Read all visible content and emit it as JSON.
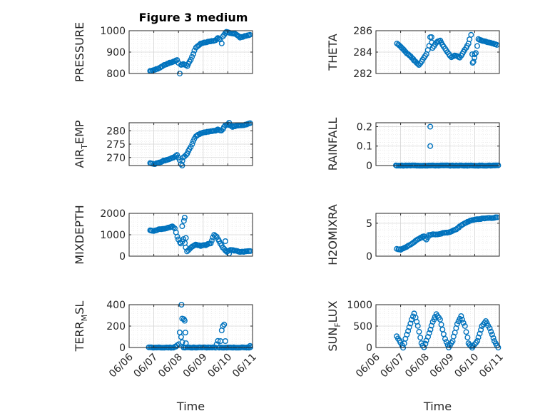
{
  "colors": {
    "marker": "#0072bd",
    "axis": "#262626"
  },
  "chart_data": [
    {
      "type": "scatter",
      "id": "pressure",
      "title": "Figure 3 medium",
      "ylabel": "PRESSURE",
      "xlim": [
        6,
        11
      ],
      "ylim": [
        800,
        1000
      ],
      "yticks": [
        800,
        900,
        1000
      ],
      "yticklabels": [
        "800",
        "900",
        "1000"
      ],
      "grid": true,
      "keys": [
        [
          6.85,
          812
        ],
        [
          7.0,
          815
        ],
        [
          7.2,
          825
        ],
        [
          7.4,
          838
        ],
        [
          7.6,
          848
        ],
        [
          7.8,
          855
        ],
        [
          7.95,
          862
        ],
        [
          8.0,
          850
        ],
        [
          8.05,
          800
        ],
        [
          8.1,
          840
        ],
        [
          8.2,
          845
        ],
        [
          8.35,
          835
        ],
        [
          8.5,
          865
        ],
        [
          8.7,
          920
        ],
        [
          8.9,
          940
        ],
        [
          9.1,
          945
        ],
        [
          9.3,
          950
        ],
        [
          9.5,
          955
        ],
        [
          9.6,
          965
        ],
        [
          9.7,
          960
        ],
        [
          9.75,
          940
        ],
        [
          9.8,
          975
        ],
        [
          9.95,
          995
        ],
        [
          10.1,
          990
        ],
        [
          10.3,
          985
        ],
        [
          10.5,
          968
        ],
        [
          10.7,
          975
        ],
        [
          10.9,
          980
        ]
      ]
    },
    {
      "type": "scatter",
      "id": "theta",
      "ylabel": "THETA",
      "xlim": [
        6,
        11
      ],
      "ylim": [
        282,
        286
      ],
      "yticks": [
        282,
        284,
        286
      ],
      "yticklabels": [
        "282",
        "284",
        "286"
      ],
      "grid": true,
      "keys": [
        [
          6.85,
          284.8
        ],
        [
          7.0,
          284.5
        ],
        [
          7.2,
          284.0
        ],
        [
          7.4,
          283.6
        ],
        [
          7.6,
          283.1
        ],
        [
          7.75,
          282.8
        ],
        [
          7.9,
          283.3
        ],
        [
          8.05,
          283.8
        ],
        [
          8.15,
          284.6
        ],
        [
          8.2,
          285.4
        ],
        [
          8.3,
          284.4
        ],
        [
          8.45,
          284.9
        ],
        [
          8.6,
          285.1
        ],
        [
          8.75,
          284.5
        ],
        [
          8.9,
          284.0
        ],
        [
          9.05,
          283.5
        ],
        [
          9.2,
          283.7
        ],
        [
          9.4,
          283.5
        ],
        [
          9.6,
          284.2
        ],
        [
          9.75,
          284.8
        ],
        [
          9.85,
          285.6
        ],
        [
          9.9,
          283.8
        ],
        [
          9.95,
          283.1
        ],
        [
          10.05,
          283.9
        ],
        [
          10.15,
          285.2
        ],
        [
          10.4,
          285.0
        ],
        [
          10.6,
          284.9
        ],
        [
          10.9,
          284.7
        ]
      ],
      "extra": [
        [
          8.25,
          285.4
        ],
        [
          9.92,
          283.0
        ],
        [
          10.0,
          283.8
        ]
      ]
    },
    {
      "type": "scatter",
      "id": "airtemp",
      "ylabel": "AIR",
      "ylabel_sub": "T",
      "ylabel_tail": "EMP",
      "xlim": [
        6,
        11
      ],
      "ylim": [
        267,
        283
      ],
      "yticks": [
        270,
        275,
        280
      ],
      "yticklabels": [
        "270",
        "275",
        "280"
      ],
      "grid": true,
      "keys": [
        [
          6.85,
          268
        ],
        [
          7.0,
          267.5
        ],
        [
          7.2,
          268
        ],
        [
          7.4,
          268.8
        ],
        [
          7.6,
          269.3
        ],
        [
          7.8,
          270
        ],
        [
          7.95,
          271
        ],
        [
          8.05,
          269
        ],
        [
          8.1,
          267.5
        ],
        [
          8.2,
          270
        ],
        [
          8.35,
          271.5
        ],
        [
          8.5,
          274
        ],
        [
          8.7,
          278
        ],
        [
          8.9,
          279
        ],
        [
          9.1,
          279.5
        ],
        [
          9.3,
          279.8
        ],
        [
          9.5,
          280
        ],
        [
          9.6,
          280.5
        ],
        [
          9.75,
          280
        ],
        [
          9.9,
          282
        ],
        [
          10.0,
          282.5
        ],
        [
          10.2,
          281.5
        ],
        [
          10.4,
          282
        ],
        [
          10.6,
          282
        ],
        [
          10.9,
          282.8
        ]
      ],
      "extra": [
        [
          8.15,
          267
        ],
        [
          10.05,
          283
        ]
      ]
    },
    {
      "type": "scatter",
      "id": "rainfall",
      "ylabel": "RAINFALL",
      "xlim": [
        6,
        11
      ],
      "ylim": [
        0,
        0.22
      ],
      "yticks": [
        0,
        0.1,
        0.2
      ],
      "yticklabels": [
        "0",
        "0.1",
        "0.2"
      ],
      "grid": true,
      "keys": [
        [
          6.8,
          0
        ],
        [
          10.95,
          0
        ]
      ],
      "extra": [
        [
          8.2,
          0.2
        ],
        [
          8.2,
          0.1
        ]
      ]
    },
    {
      "type": "scatter",
      "id": "mixdepth",
      "ylabel": "MIXDEPTH",
      "xlim": [
        6,
        11
      ],
      "ylim": [
        0,
        2000
      ],
      "yticks": [
        0,
        1000,
        2000
      ],
      "yticklabels": [
        "0",
        "1000",
        "2000"
      ],
      "grid": true,
      "keys": [
        [
          6.85,
          1200
        ],
        [
          7.0,
          1180
        ],
        [
          7.2,
          1250
        ],
        [
          7.4,
          1280
        ],
        [
          7.6,
          1330
        ],
        [
          7.75,
          1400
        ],
        [
          7.85,
          1300
        ],
        [
          7.95,
          900
        ],
        [
          8.05,
          650
        ],
        [
          8.1,
          600
        ],
        [
          8.2,
          800
        ],
        [
          8.35,
          220
        ],
        [
          8.5,
          400
        ],
        [
          8.7,
          550
        ],
        [
          8.9,
          480
        ],
        [
          9.1,
          520
        ],
        [
          9.3,
          600
        ],
        [
          9.45,
          1000
        ],
        [
          9.55,
          900
        ],
        [
          9.7,
          600
        ],
        [
          9.8,
          400
        ],
        [
          9.95,
          200
        ],
        [
          10.1,
          300
        ],
        [
          10.3,
          250
        ],
        [
          10.5,
          200
        ],
        [
          10.9,
          230
        ]
      ],
      "extra": [
        [
          8.25,
          1800
        ],
        [
          8.22,
          1650
        ],
        [
          8.15,
          1400
        ],
        [
          8.3,
          850
        ],
        [
          9.9,
          700
        ],
        [
          10.05,
          120
        ]
      ]
    },
    {
      "type": "scatter",
      "id": "h2omixra",
      "ylabel": "H2OMIXRA",
      "xlim": [
        6,
        11
      ],
      "ylim": [
        0,
        6.5
      ],
      "yticks": [
        0,
        5
      ],
      "yticklabels": [
        "0",
        "5"
      ],
      "grid": true,
      "keys": [
        [
          6.85,
          1.1
        ],
        [
          7.0,
          1.0
        ],
        [
          7.2,
          1.3
        ],
        [
          7.4,
          1.8
        ],
        [
          7.6,
          2.3
        ],
        [
          7.8,
          2.8
        ],
        [
          7.95,
          3.0
        ],
        [
          8.05,
          2.5
        ],
        [
          8.15,
          3.2
        ],
        [
          8.3,
          3.3
        ],
        [
          8.5,
          3.3
        ],
        [
          8.7,
          3.5
        ],
        [
          8.9,
          3.6
        ],
        [
          9.1,
          3.8
        ],
        [
          9.3,
          4.2
        ],
        [
          9.5,
          4.8
        ],
        [
          9.7,
          5.2
        ],
        [
          9.9,
          5.5
        ],
        [
          10.1,
          5.6
        ],
        [
          10.3,
          5.7
        ],
        [
          10.5,
          5.8
        ],
        [
          10.7,
          5.8
        ],
        [
          10.9,
          5.9
        ]
      ]
    },
    {
      "type": "scatter",
      "id": "terrmsl",
      "ylabel": "TERR",
      "ylabel_sub": "M",
      "ylabel_tail": "SL",
      "xlim": [
        6,
        11
      ],
      "ylim": [
        0,
        400
      ],
      "yticks": [
        0,
        200,
        400
      ],
      "yticklabels": [
        "0",
        "200",
        "400"
      ],
      "grid": true,
      "xticks": [
        6,
        7,
        8,
        9,
        10,
        11
      ],
      "xticklabels": [
        "06/06",
        "06/07",
        "06/08",
        "06/09",
        "06/10",
        "06/11"
      ],
      "xlabel": "Time",
      "keys": [
        [
          6.8,
          0
        ],
        [
          7.8,
          0
        ],
        [
          7.9,
          10
        ],
        [
          8.0,
          30
        ],
        [
          8.05,
          140
        ],
        [
          8.1,
          100
        ],
        [
          8.2,
          0
        ],
        [
          9.5,
          0
        ],
        [
          9.6,
          60
        ],
        [
          9.65,
          0
        ],
        [
          10.9,
          0
        ]
      ],
      "extra": [
        [
          8.12,
          400
        ],
        [
          8.15,
          270
        ],
        [
          8.22,
          265
        ],
        [
          8.25,
          250
        ],
        [
          8.28,
          140
        ],
        [
          8.3,
          40
        ],
        [
          9.75,
          160
        ],
        [
          9.8,
          200
        ],
        [
          9.85,
          215
        ],
        [
          9.7,
          60
        ],
        [
          9.9,
          60
        ],
        [
          10.9,
          15
        ]
      ]
    },
    {
      "type": "scatter",
      "id": "sunflux",
      "ylabel": "SUN",
      "ylabel_sub": "F",
      "ylabel_tail": "LUX",
      "xlim": [
        6,
        11
      ],
      "ylim": [
        0,
        1000
      ],
      "yticks": [
        0,
        500,
        1000
      ],
      "yticklabels": [
        "0",
        "500",
        "1000"
      ],
      "grid": true,
      "xticks": [
        6,
        7,
        8,
        9,
        10,
        11
      ],
      "xticklabels": [
        "06/06",
        "06/07",
        "06/08",
        "06/09",
        "06/10",
        "06/11"
      ],
      "xlabel": "Time",
      "keys": [
        [
          6.85,
          260
        ],
        [
          7.0,
          120
        ],
        [
          7.1,
          0
        ],
        [
          7.25,
          300
        ],
        [
          7.45,
          650
        ],
        [
          7.55,
          800
        ],
        [
          7.7,
          500
        ],
        [
          7.85,
          100
        ],
        [
          7.95,
          0
        ],
        [
          8.1,
          250
        ],
        [
          8.3,
          600
        ],
        [
          8.45,
          780
        ],
        [
          8.6,
          650
        ],
        [
          8.8,
          200
        ],
        [
          8.95,
          0
        ],
        [
          9.1,
          150
        ],
        [
          9.3,
          550
        ],
        [
          9.45,
          730
        ],
        [
          9.6,
          500
        ],
        [
          9.75,
          100
        ],
        [
          9.9,
          0
        ],
        [
          10.1,
          150
        ],
        [
          10.3,
          500
        ],
        [
          10.45,
          620
        ],
        [
          10.6,
          450
        ],
        [
          10.8,
          150
        ],
        [
          10.95,
          0
        ]
      ]
    }
  ]
}
